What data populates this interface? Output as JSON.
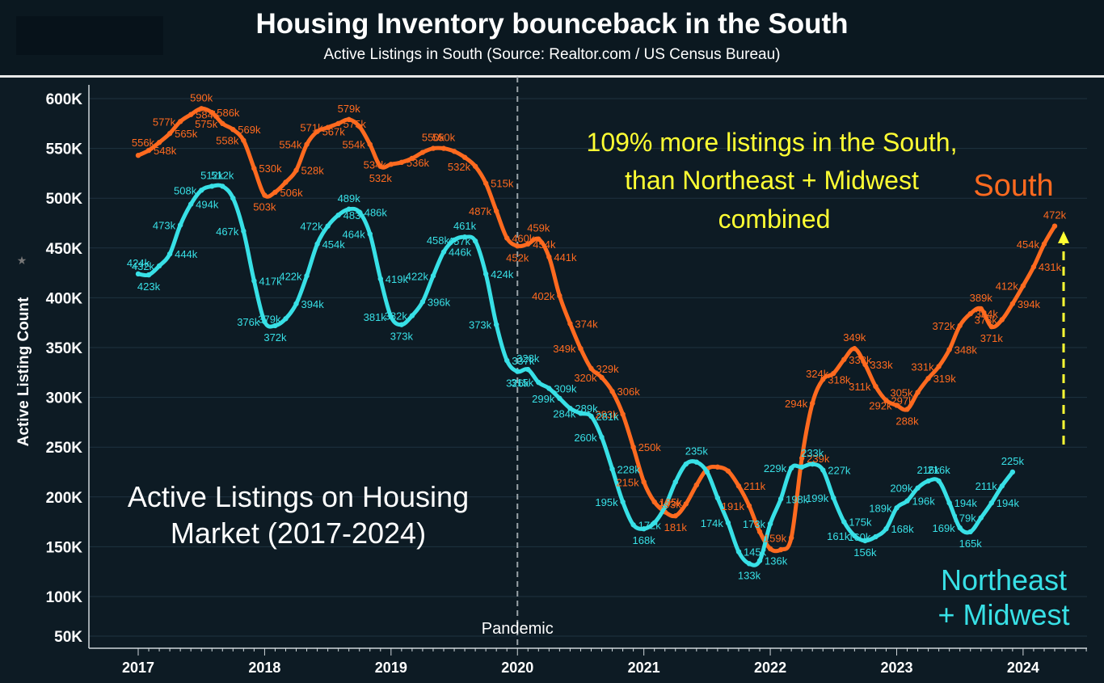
{
  "header": {
    "title": "Housing Inventory bounceback in the South",
    "subtitle": "Active Listings in South (Source: Realtor.com / US Census Bureau)"
  },
  "annotations": {
    "highlight_line1": "109% more listings in the South,",
    "highlight_line2": "than Northeast + Midwest",
    "highlight_line3": "combined",
    "series_label_south": "South",
    "series_label_ne_line1": "Northeast",
    "series_label_ne_line2": "+ Midwest",
    "chart_caption_line1": "Active Listings on Housing",
    "chart_caption_line2": "Market (2017-2024)",
    "pandemic_label": "Pandemic"
  },
  "colors": {
    "south": "#ff6a1f",
    "northeast_midwest": "#38e0e6",
    "highlight_text": "#ffff33",
    "arrow": "#ffff33",
    "background": "#0d1b24"
  },
  "chart_data": {
    "type": "line",
    "title": "Housing Inventory bounceback in the South",
    "subtitle": "Active Listings in South (Source: Realtor.com / US Census Bureau)",
    "xlabel": "",
    "ylabel": "Active Listing Count",
    "ylim": [
      50000,
      600000
    ],
    "yticks": [
      {
        "v": 600000,
        "label": "600K"
      },
      {
        "v": 550000,
        "label": "550K"
      },
      {
        "v": 500000,
        "label": "500K"
      },
      {
        "v": 450000,
        "label": "450K"
      },
      {
        "v": 400000,
        "label": "400K"
      },
      {
        "v": 350000,
        "label": "350K"
      },
      {
        "v": 300000,
        "label": "300K"
      },
      {
        "v": 250000,
        "label": "250K"
      },
      {
        "v": 200000,
        "label": "200K"
      },
      {
        "v": 150000,
        "label": "150K"
      },
      {
        "v": 100000,
        "label": "100K"
      },
      {
        "v": 50000,
        "label": "50K"
      }
    ],
    "xticks": [
      {
        "t": 0,
        "label": "2017"
      },
      {
        "t": 12,
        "label": "2018"
      },
      {
        "t": 24,
        "label": "2019"
      },
      {
        "t": 36,
        "label": "2020"
      },
      {
        "t": 48,
        "label": "2021"
      },
      {
        "t": 60,
        "label": "2022"
      },
      {
        "t": 72,
        "label": "2023"
      },
      {
        "t": 84,
        "label": "2024"
      }
    ],
    "x_unit": "months since Jan 2017",
    "pandemic_marker_t": 36,
    "series": [
      {
        "name": "South",
        "values": [
          {
            "t": 0,
            "v": 543000
          },
          {
            "t": 1,
            "v": 548000,
            "label": "548k"
          },
          {
            "t": 2,
            "v": 556000,
            "label": "556k"
          },
          {
            "t": 3,
            "v": 565000,
            "label": "565k"
          },
          {
            "t": 4,
            "v": 577000,
            "label": "577k"
          },
          {
            "t": 5,
            "v": 584000,
            "label": "584k"
          },
          {
            "t": 6,
            "v": 590000,
            "label": "590k"
          },
          {
            "t": 7,
            "v": 586000,
            "label": "586k"
          },
          {
            "t": 8,
            "v": 575000,
            "label": "575k"
          },
          {
            "t": 9,
            "v": 569000,
            "label": "569k"
          },
          {
            "t": 10,
            "v": 558000,
            "label": "558k"
          },
          {
            "t": 11,
            "v": 530000,
            "label": "530k"
          },
          {
            "t": 12,
            "v": 503000,
            "label": "503k"
          },
          {
            "t": 13,
            "v": 506000,
            "label": "506k"
          },
          {
            "t": 14,
            "v": 516000
          },
          {
            "t": 15,
            "v": 528000,
            "label": "528k"
          },
          {
            "t": 16,
            "v": 554000,
            "label": "554k"
          },
          {
            "t": 17,
            "v": 567000,
            "label": "567k"
          },
          {
            "t": 18,
            "v": 571000,
            "label": "571k"
          },
          {
            "t": 19,
            "v": 575000,
            "label": "575k"
          },
          {
            "t": 20,
            "v": 579000,
            "label": "579k"
          },
          {
            "t": 21,
            "v": 572000
          },
          {
            "t": 22,
            "v": 554000,
            "label": "554k"
          },
          {
            "t": 23,
            "v": 532000,
            "label": "532k"
          },
          {
            "t": 24,
            "v": 534000,
            "label": "534k"
          },
          {
            "t": 25,
            "v": 536000,
            "label": "536k"
          },
          {
            "t": 26,
            "v": 540000
          },
          {
            "t": 27,
            "v": 546000
          },
          {
            "t": 28,
            "v": 550000,
            "label": "550k"
          },
          {
            "t": 29,
            "v": 550000,
            "label": "550k"
          },
          {
            "t": 30,
            "v": 547000
          },
          {
            "t": 31,
            "v": 541000
          },
          {
            "t": 32,
            "v": 532000,
            "label": "532k"
          },
          {
            "t": 33,
            "v": 515000,
            "label": "515k"
          },
          {
            "t": 34,
            "v": 487000,
            "label": "487k"
          },
          {
            "t": 35,
            "v": 460000,
            "label": "460k"
          },
          {
            "t": 36,
            "v": 452000,
            "label": "452k"
          },
          {
            "t": 37,
            "v": 454000,
            "label": "454k"
          },
          {
            "t": 38,
            "v": 459000,
            "label": "459k"
          },
          {
            "t": 39,
            "v": 441000,
            "label": "441k"
          },
          {
            "t": 40,
            "v": 402000,
            "label": "402k"
          },
          {
            "t": 41,
            "v": 374000,
            "label": "374k"
          },
          {
            "t": 42,
            "v": 349000,
            "label": "349k"
          },
          {
            "t": 43,
            "v": 329000,
            "label": "329k"
          },
          {
            "t": 44,
            "v": 320000,
            "label": "320k"
          },
          {
            "t": 45,
            "v": 306000,
            "label": "306k"
          },
          {
            "t": 46,
            "v": 283000,
            "label": "283k"
          },
          {
            "t": 47,
            "v": 250000,
            "label": "250k"
          },
          {
            "t": 48,
            "v": 215000,
            "label": "215k"
          },
          {
            "t": 49,
            "v": 195000,
            "label": "195k"
          },
          {
            "t": 50,
            "v": 185000
          },
          {
            "t": 51,
            "v": 181000,
            "label": "181k"
          },
          {
            "t": 52,
            "v": 193000,
            "label": "193k"
          },
          {
            "t": 53,
            "v": 212000
          },
          {
            "t": 54,
            "v": 228000
          },
          {
            "t": 55,
            "v": 230000
          },
          {
            "t": 56,
            "v": 226000
          },
          {
            "t": 57,
            "v": 211000,
            "label": "211k"
          },
          {
            "t": 58,
            "v": 191000,
            "label": "191k"
          },
          {
            "t": 59,
            "v": 165000
          },
          {
            "t": 60,
            "v": 148000
          },
          {
            "t": 61,
            "v": 147000
          },
          {
            "t": 62,
            "v": 159000,
            "label": "159k"
          },
          {
            "t": 63,
            "v": 239000,
            "label": "239k"
          },
          {
            "t": 64,
            "v": 294000,
            "label": "294k"
          },
          {
            "t": 65,
            "v": 318000,
            "label": "318k"
          },
          {
            "t": 66,
            "v": 324000,
            "label": "324k"
          },
          {
            "t": 67,
            "v": 338000,
            "label": "338k"
          },
          {
            "t": 68,
            "v": 349000,
            "label": "349k"
          },
          {
            "t": 69,
            "v": 333000,
            "label": "333k"
          },
          {
            "t": 70,
            "v": 311000,
            "label": "311k"
          },
          {
            "t": 71,
            "v": 297000,
            "label": "297k"
          },
          {
            "t": 72,
            "v": 292000,
            "label": "292k"
          },
          {
            "t": 73,
            "v": 288000,
            "label": "288k"
          },
          {
            "t": 74,
            "v": 305000,
            "label": "305k"
          },
          {
            "t": 75,
            "v": 319000,
            "label": "319k"
          },
          {
            "t": 76,
            "v": 331000,
            "label": "331k"
          },
          {
            "t": 77,
            "v": 348000,
            "label": "348k"
          },
          {
            "t": 78,
            "v": 372000,
            "label": "372k"
          },
          {
            "t": 79,
            "v": 384000,
            "label": "384k"
          },
          {
            "t": 80,
            "v": 389000,
            "label": "389k"
          },
          {
            "t": 81,
            "v": 371000,
            "label": "371k"
          },
          {
            "t": 82,
            "v": 378000,
            "label": "378k"
          },
          {
            "t": 83,
            "v": 394000,
            "label": "394k"
          },
          {
            "t": 84,
            "v": 412000,
            "label": "412k"
          },
          {
            "t": 85,
            "v": 431000,
            "label": "431k"
          },
          {
            "t": 86,
            "v": 454000,
            "label": "454k"
          },
          {
            "t": 87,
            "v": 472000,
            "label": "472k"
          }
        ]
      },
      {
        "name": "Northeast + Midwest",
        "values": [
          {
            "t": 0,
            "v": 424000,
            "label": "424k"
          },
          {
            "t": 1,
            "v": 423000,
            "label": "423k"
          },
          {
            "t": 2,
            "v": 432000,
            "label": "432k"
          },
          {
            "t": 3,
            "v": 444000,
            "label": "444k"
          },
          {
            "t": 4,
            "v": 473000,
            "label": "473k"
          },
          {
            "t": 5,
            "v": 494000,
            "label": "494k"
          },
          {
            "t": 6,
            "v": 508000,
            "label": "508k"
          },
          {
            "t": 7,
            "v": 512000,
            "label": "512k"
          },
          {
            "t": 8,
            "v": 512000,
            "label": "512k"
          },
          {
            "t": 9,
            "v": 500000
          },
          {
            "t": 10,
            "v": 467000,
            "label": "467k"
          },
          {
            "t": 11,
            "v": 417000,
            "label": "417k"
          },
          {
            "t": 12,
            "v": 376000,
            "label": "376k"
          },
          {
            "t": 13,
            "v": 372000,
            "label": "372k"
          },
          {
            "t": 14,
            "v": 379000,
            "label": "379k"
          },
          {
            "t": 15,
            "v": 394000,
            "label": "394k"
          },
          {
            "t": 16,
            "v": 422000,
            "label": "422k"
          },
          {
            "t": 17,
            "v": 454000,
            "label": "454k"
          },
          {
            "t": 18,
            "v": 472000,
            "label": "472k"
          },
          {
            "t": 19,
            "v": 483000,
            "label": "483k"
          },
          {
            "t": 20,
            "v": 489000,
            "label": "489k"
          },
          {
            "t": 21,
            "v": 486000,
            "label": "486k"
          },
          {
            "t": 22,
            "v": 464000,
            "label": "464k"
          },
          {
            "t": 23,
            "v": 419000,
            "label": "419k"
          },
          {
            "t": 24,
            "v": 381000,
            "label": "381k"
          },
          {
            "t": 25,
            "v": 373000,
            "label": "373k"
          },
          {
            "t": 26,
            "v": 382000,
            "label": "382k"
          },
          {
            "t": 27,
            "v": 396000,
            "label": "396k"
          },
          {
            "t": 28,
            "v": 422000,
            "label": "422k"
          },
          {
            "t": 29,
            "v": 446000,
            "label": "446k"
          },
          {
            "t": 30,
            "v": 458000,
            "label": "458k"
          },
          {
            "t": 31,
            "v": 461000,
            "label": "461k"
          },
          {
            "t": 32,
            "v": 457000,
            "label": "457k"
          },
          {
            "t": 33,
            "v": 424000,
            "label": "424k"
          },
          {
            "t": 34,
            "v": 373000,
            "label": "373k"
          },
          {
            "t": 35,
            "v": 337000,
            "label": "337k"
          },
          {
            "t": 36,
            "v": 326000,
            "label": "326k"
          },
          {
            "t": 37,
            "v": 328000,
            "label": "328k"
          },
          {
            "t": 38,
            "v": 315000,
            "label": "315k"
          },
          {
            "t": 39,
            "v": 309000,
            "label": "309k"
          },
          {
            "t": 40,
            "v": 299000,
            "label": "299k"
          },
          {
            "t": 41,
            "v": 289000,
            "label": "289k"
          },
          {
            "t": 42,
            "v": 284000,
            "label": "284k"
          },
          {
            "t": 43,
            "v": 281000,
            "label": "281k"
          },
          {
            "t": 44,
            "v": 260000,
            "label": "260k"
          },
          {
            "t": 45,
            "v": 228000,
            "label": "228k"
          },
          {
            "t": 46,
            "v": 195000,
            "label": "195k"
          },
          {
            "t": 47,
            "v": 172000,
            "label": "172k"
          },
          {
            "t": 48,
            "v": 168000,
            "label": "168k"
          },
          {
            "t": 49,
            "v": 174000
          },
          {
            "t": 50,
            "v": 190000
          },
          {
            "t": 51,
            "v": 215000
          },
          {
            "t": 52,
            "v": 233000
          },
          {
            "t": 53,
            "v": 235000,
            "label": "235k"
          },
          {
            "t": 54,
            "v": 225000
          },
          {
            "t": 55,
            "v": 199000
          },
          {
            "t": 56,
            "v": 174000,
            "label": "174k"
          },
          {
            "t": 57,
            "v": 145000,
            "label": "145k"
          },
          {
            "t": 58,
            "v": 133000,
            "label": "133k"
          },
          {
            "t": 59,
            "v": 136000,
            "label": "136k"
          },
          {
            "t": 60,
            "v": 173000,
            "label": "173k"
          },
          {
            "t": 61,
            "v": 198000,
            "label": "198k"
          },
          {
            "t": 62,
            "v": 229000,
            "label": "229k"
          },
          {
            "t": 63,
            "v": 230000
          },
          {
            "t": 64,
            "v": 233000,
            "label": "233k"
          },
          {
            "t": 65,
            "v": 227000,
            "label": "227k"
          },
          {
            "t": 66,
            "v": 199000,
            "label": "199k"
          },
          {
            "t": 67,
            "v": 175000,
            "label": "175k"
          },
          {
            "t": 68,
            "v": 161000,
            "label": "161k"
          },
          {
            "t": 69,
            "v": 156000,
            "label": "156k"
          },
          {
            "t": 70,
            "v": 160000,
            "label": "160k"
          },
          {
            "t": 71,
            "v": 168000,
            "label": "168k"
          },
          {
            "t": 72,
            "v": 189000,
            "label": "189k"
          },
          {
            "t": 73,
            "v": 196000,
            "label": "196k"
          },
          {
            "t": 74,
            "v": 209000,
            "label": "209k"
          },
          {
            "t": 75,
            "v": 216000,
            "label": "216k"
          },
          {
            "t": 76,
            "v": 216000,
            "label": "216k"
          },
          {
            "t": 77,
            "v": 194000,
            "label": "194k"
          },
          {
            "t": 78,
            "v": 169000,
            "label": "169k"
          },
          {
            "t": 79,
            "v": 165000,
            "label": "165k"
          },
          {
            "t": 80,
            "v": 179000,
            "label": "179k"
          },
          {
            "t": 81,
            "v": 194000,
            "label": "194k"
          },
          {
            "t": 82,
            "v": 211000,
            "label": "211k"
          },
          {
            "t": 83,
            "v": 225000,
            "label": "225k"
          }
        ]
      }
    ]
  }
}
